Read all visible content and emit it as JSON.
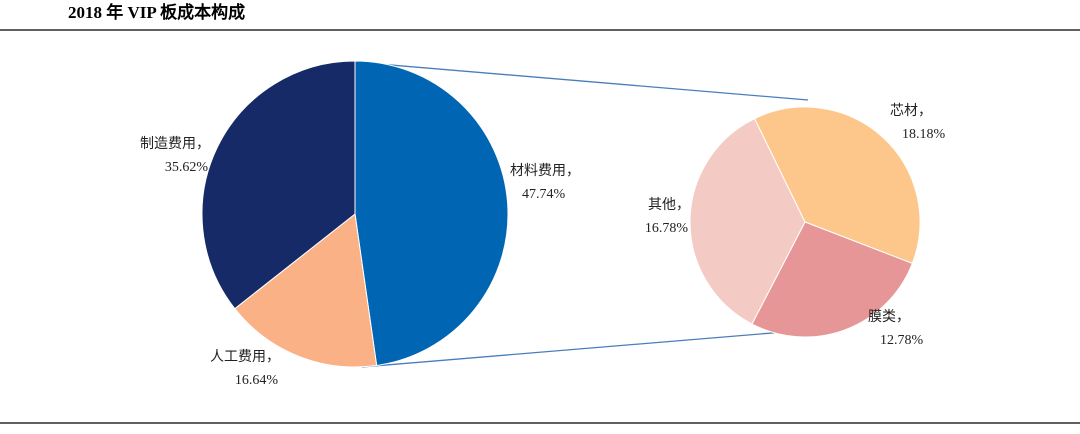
{
  "title": "2018 年 VIP 板成本构成",
  "chart_data": [
    {
      "type": "pie",
      "categories": [
        "材料费用，",
        "人工费用，",
        "制造费用，"
      ],
      "values": [
        47.74,
        16.64,
        35.62
      ],
      "value_labels": [
        "47.74%",
        "16.64%",
        "35.62%"
      ],
      "colors": [
        "#0066b3",
        "#f9b185",
        "#152a66"
      ]
    },
    {
      "type": "pie",
      "categories": [
        "芯材，",
        "膜类，",
        "其他，"
      ],
      "values": [
        18.18,
        12.78,
        16.78
      ],
      "value_labels": [
        "18.18%",
        "12.78%",
        "16.78%"
      ],
      "colors": [
        "#fdc68a",
        "#e69696",
        "#f4cbc4"
      ]
    }
  ]
}
